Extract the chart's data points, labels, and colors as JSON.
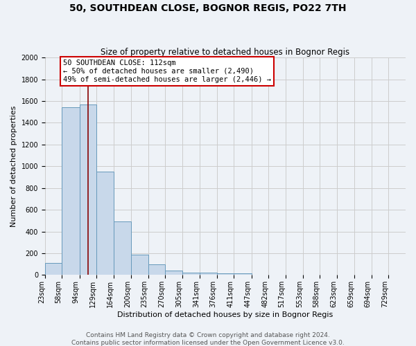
{
  "title": "50, SOUTHDEAN CLOSE, BOGNOR REGIS, PO22 7TH",
  "subtitle": "Size of property relative to detached houses in Bognor Regis",
  "xlabel": "Distribution of detached houses by size in Bognor Regis",
  "ylabel": "Number of detached properties",
  "bin_labels": [
    "23sqm",
    "58sqm",
    "94sqm",
    "129sqm",
    "164sqm",
    "200sqm",
    "235sqm",
    "270sqm",
    "305sqm",
    "341sqm",
    "376sqm",
    "411sqm",
    "447sqm",
    "482sqm",
    "517sqm",
    "553sqm",
    "588sqm",
    "623sqm",
    "659sqm",
    "694sqm",
    "729sqm"
  ],
  "bar_values": [
    110,
    1540,
    1570,
    950,
    490,
    190,
    100,
    40,
    25,
    20,
    15,
    15,
    5,
    5,
    5,
    5,
    5,
    5,
    5,
    5,
    5
  ],
  "bar_color": "#c8d8ea",
  "bar_edge_color": "#6699bb",
  "red_line_x": 112,
  "ylim": [
    0,
    2000
  ],
  "yticks": [
    0,
    200,
    400,
    600,
    800,
    1000,
    1200,
    1400,
    1600,
    1800,
    2000
  ],
  "annotation_title": "50 SOUTHDEAN CLOSE: 112sqm",
  "annotation_line1": "← 50% of detached houses are smaller (2,490)",
  "annotation_line2": "49% of semi-detached houses are larger (2,446) →",
  "annotation_box_color": "#ffffff",
  "annotation_box_edge_color": "#cc0000",
  "footer_line1": "Contains HM Land Registry data © Crown copyright and database right 2024.",
  "footer_line2": "Contains public sector information licensed under the Open Government Licence v3.0.",
  "background_color": "#eef2f7",
  "plot_background_color": "#eef2f7",
  "grid_color": "#cccccc",
  "title_fontsize": 10,
  "subtitle_fontsize": 8.5,
  "axis_label_fontsize": 8,
  "tick_fontsize": 7,
  "annotation_fontsize": 7.5,
  "footer_fontsize": 6.5,
  "bin_edges": [
    23,
    58,
    94,
    129,
    164,
    200,
    235,
    270,
    305,
    341,
    376,
    411,
    447,
    482,
    517,
    553,
    588,
    623,
    659,
    694,
    729,
    764
  ]
}
